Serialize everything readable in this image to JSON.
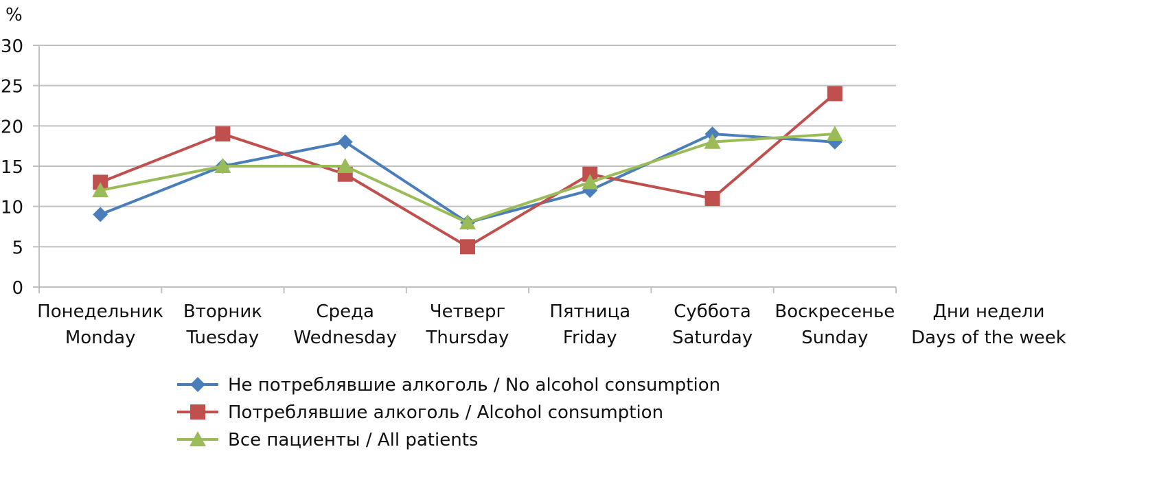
{
  "chart_data": {
    "type": "line",
    "ylabel": "%",
    "xlabel": [
      "Дни недели",
      "Days of the week"
    ],
    "ylim": [
      0,
      30
    ],
    "yticks": [
      0,
      5,
      10,
      15,
      20,
      25,
      30
    ],
    "grid": true,
    "legend_position": "bottom",
    "categories": [
      [
        "Понедельник",
        "Monday"
      ],
      [
        "Вторник",
        "Tuesday"
      ],
      [
        "Среда",
        "Wednesday"
      ],
      [
        "Четверг",
        "Thursday"
      ],
      [
        "Пятница",
        "Friday"
      ],
      [
        "Суббота",
        "Saturday"
      ],
      [
        "Воскресенье",
        "Sunday"
      ]
    ],
    "series": [
      {
        "name": "Не потреблявшие алкоголь / No alcohol consumption",
        "color": "#4a7ebb",
        "marker": "diamond",
        "values": [
          9,
          15,
          18,
          8,
          12,
          19,
          18
        ]
      },
      {
        "name": "Потреблявшие алкоголь / Alcohol consumption",
        "color": "#c0504d",
        "marker": "square",
        "values": [
          13,
          19,
          14,
          5,
          14,
          11,
          24
        ]
      },
      {
        "name": "Все пациенты / All patients",
        "color": "#9bbb59",
        "marker": "triangle",
        "values": [
          12,
          15,
          15,
          8,
          13,
          18,
          19
        ]
      }
    ]
  }
}
